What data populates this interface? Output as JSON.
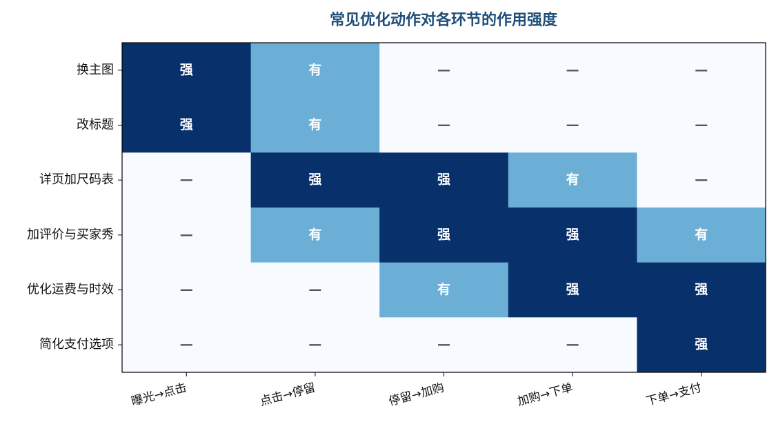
{
  "chart_data": {
    "type": "heatmap",
    "title": "常见优化动作对各环节的作用强度",
    "rows": [
      "换主图",
      "改标题",
      "详页加尺码表",
      "加评价与买家秀",
      "优化运费与时效",
      "简化支付选项"
    ],
    "columns": [
      "曝光→点击",
      "点击→停留",
      "停留→加购",
      "加购→下单",
      "下单→支付"
    ],
    "values": [
      [
        2,
        1,
        0,
        0,
        0
      ],
      [
        2,
        1,
        0,
        0,
        0
      ],
      [
        0,
        2,
        2,
        1,
        0
      ],
      [
        0,
        1,
        2,
        2,
        1
      ],
      [
        0,
        0,
        1,
        2,
        2
      ],
      [
        0,
        0,
        0,
        0,
        2
      ]
    ],
    "value_labels": [
      [
        "强",
        "有",
        "—",
        "—",
        "—"
      ],
      [
        "强",
        "有",
        "—",
        "—",
        "—"
      ],
      [
        "—",
        "强",
        "强",
        "有",
        "—"
      ],
      [
        "—",
        "有",
        "强",
        "强",
        "有"
      ],
      [
        "—",
        "—",
        "有",
        "强",
        "强"
      ],
      [
        "—",
        "—",
        "—",
        "—",
        "强"
      ]
    ],
    "colors": [
      "#f7fbff",
      "#6baed6",
      "#08306b"
    ]
  }
}
